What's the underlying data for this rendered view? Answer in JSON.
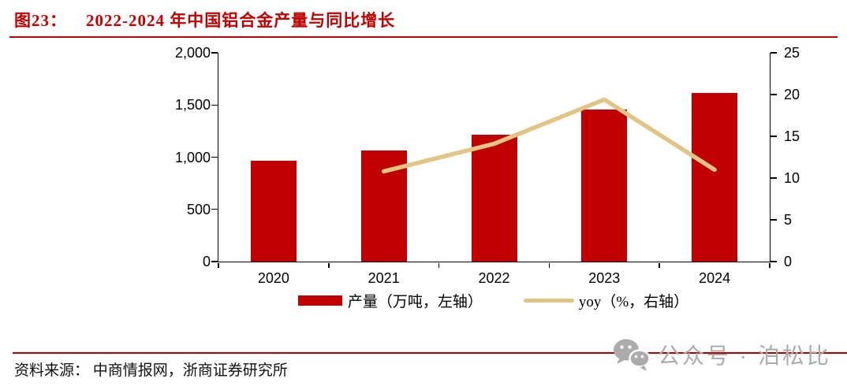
{
  "header": {
    "figure_label": "图23：",
    "title": "2022-2024 年中国铝合金产量与同比增长"
  },
  "chart_data": {
    "type": "bar",
    "title": "2022-2024 年中国铝合金产量与同比增长",
    "categories": [
      "2020",
      "2021",
      "2022",
      "2023",
      "2024"
    ],
    "series": [
      {
        "name": "产量（万吨，左轴）",
        "type": "bar",
        "axis": "left",
        "color": "#c00000",
        "values": [
          964,
          1068,
          1218,
          1454,
          1614
        ]
      },
      {
        "name": "yoy（%，右轴）",
        "type": "line",
        "axis": "right",
        "color": "#e0c585",
        "x": [
          "2021",
          "2022",
          "2023",
          "2024"
        ],
        "values": [
          10.8,
          14.1,
          19.4,
          11.0
        ]
      }
    ],
    "left_axis": {
      "min": 0,
      "max": 2000,
      "ticks": [
        "0",
        "500",
        "1,000",
        "1,500",
        "2,000"
      ]
    },
    "right_axis": {
      "min": 0,
      "max": 25,
      "ticks": [
        "0",
        "5",
        "10",
        "15",
        "20",
        "25"
      ]
    },
    "grid": false,
    "legend_position": "bottom"
  },
  "legend": {
    "bar_label": "产量（万吨，左轴）",
    "line_label": "yoy（%，右轴）"
  },
  "footer": {
    "source": "资料来源： 中商情报网，浙商证券研究所"
  },
  "watermark": {
    "icon": "wechat-icon",
    "text": "公众号 · 泊松比"
  },
  "colors": {
    "accent_red": "#c00000",
    "line_tan": "#e0c585",
    "watermark_gray": "#ababab"
  }
}
